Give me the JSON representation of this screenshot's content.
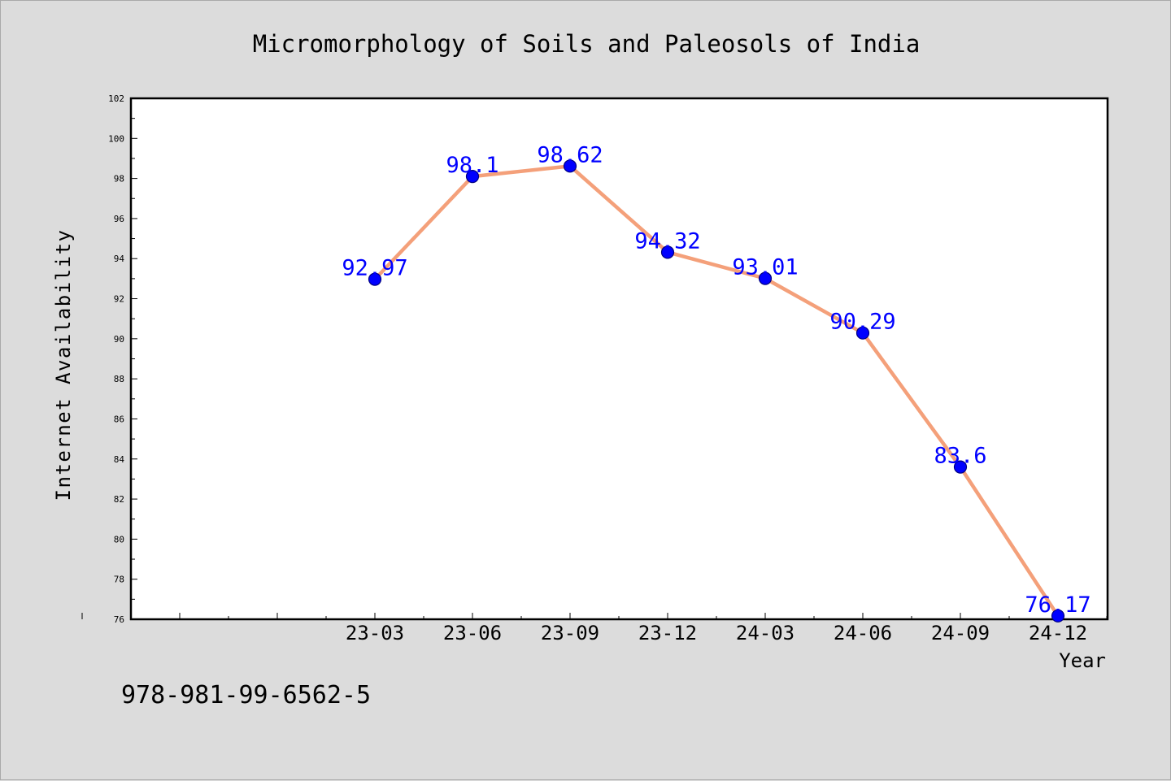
{
  "chart_data": {
    "type": "line",
    "title": "Micromorphology of Soils and Paleosols of India",
    "xlabel": "Year",
    "ylabel": "Internet Availability",
    "categories": [
      "23-03",
      "23-06",
      "23-09",
      "23-12",
      "24-03",
      "24-06",
      "24-09",
      "24-12"
    ],
    "series": [
      {
        "values": [
          92.97,
          98.1,
          98.62,
          94.32,
          93.01,
          90.29,
          83.6,
          76.17
        ],
        "data_labels": [
          "92.97",
          "98.1",
          "98.62",
          "94.32",
          "93.01",
          "90.29",
          "83.6",
          "76.17"
        ]
      }
    ],
    "ylim": [
      76,
      102
    ],
    "y_ticks": [
      "76",
      "78",
      "80",
      "82",
      "84",
      "86",
      "88",
      "90",
      "92",
      "94",
      "96",
      "98",
      "100",
      "102"
    ],
    "grid": false,
    "legend": "none",
    "colors": {
      "line": "#f4a07a",
      "marker": "#0000ff",
      "marker_edge": "#000080",
      "data_label": "#0000ff",
      "background": "#dcdcdc",
      "plot_background": "#ffffff"
    }
  },
  "annotation": "978-981-99-6562-5"
}
